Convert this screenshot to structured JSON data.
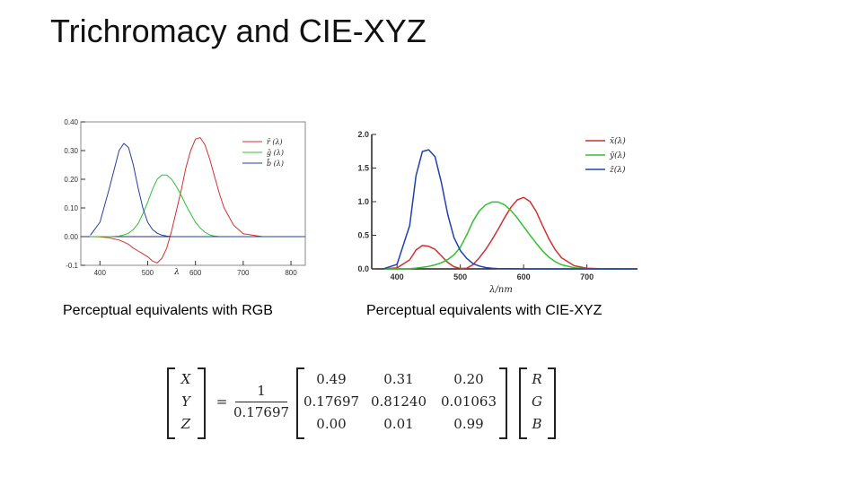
{
  "slide": {
    "title": "Trichromacy and CIE-XYZ"
  },
  "captions": {
    "left": "Perceptual equivalents with RGB",
    "right": "Perceptual equivalents with CIE-XYZ"
  },
  "chart_data": [
    {
      "type": "line",
      "title": "",
      "xlabel": "λ",
      "ylabel": "",
      "xlim": [
        360,
        830
      ],
      "ylim": [
        -0.1,
        0.4
      ],
      "x_ticks": [
        "400",
        "500",
        "600",
        "700",
        "800"
      ],
      "y_ticks": [
        "-0.1",
        "0.00",
        "0.10",
        "0.20",
        "0.30",
        "0.40"
      ],
      "grid": false,
      "legend_position": "top-right",
      "x": [
        380,
        400,
        420,
        440,
        450,
        460,
        470,
        480,
        490,
        500,
        510,
        520,
        530,
        540,
        550,
        560,
        570,
        580,
        590,
        600,
        610,
        620,
        630,
        640,
        650,
        660,
        680,
        700,
        740,
        780,
        830
      ],
      "series": [
        {
          "name": "r̄ (λ)",
          "color": "#d03030",
          "values": [
            0,
            -0.001,
            -0.004,
            -0.012,
            -0.019,
            -0.027,
            -0.04,
            -0.05,
            -0.06,
            -0.07,
            -0.085,
            -0.092,
            -0.075,
            -0.04,
            0.02,
            0.09,
            0.16,
            0.24,
            0.3,
            0.34,
            0.345,
            0.32,
            0.27,
            0.21,
            0.15,
            0.1,
            0.04,
            0.01,
            0,
            0,
            0
          ]
        },
        {
          "name": "ḡ (λ)",
          "color": "#30c030",
          "values": [
            0,
            0,
            0,
            0.002,
            0.006,
            0.012,
            0.025,
            0.045,
            0.08,
            0.12,
            0.165,
            0.2,
            0.215,
            0.215,
            0.2,
            0.175,
            0.145,
            0.11,
            0.08,
            0.05,
            0.03,
            0.015,
            0.006,
            0.002,
            0,
            0,
            0,
            0,
            0,
            0,
            0
          ]
        },
        {
          "name": "b̄ (λ)",
          "color": "#2040a0",
          "values": [
            0.005,
            0.05,
            0.17,
            0.3,
            0.325,
            0.31,
            0.25,
            0.17,
            0.1,
            0.05,
            0.025,
            0.012,
            0.005,
            0.002,
            0,
            0,
            0,
            0,
            0,
            0,
            0,
            0,
            0,
            0,
            0,
            0,
            0,
            0,
            0,
            0,
            0
          ]
        }
      ]
    },
    {
      "type": "line",
      "title": "",
      "xlabel": "λ/nm",
      "ylabel": "",
      "xlim": [
        360,
        780
      ],
      "ylim": [
        0,
        2.0
      ],
      "x_ticks": [
        "400",
        "500",
        "600",
        "700"
      ],
      "y_ticks": [
        "0.0",
        "0.5",
        "1.0",
        "1.5",
        "2.0"
      ],
      "grid": false,
      "legend_position": "top-right",
      "x": [
        380,
        400,
        420,
        430,
        440,
        450,
        460,
        470,
        480,
        490,
        500,
        510,
        520,
        530,
        540,
        550,
        560,
        570,
        580,
        590,
        600,
        610,
        620,
        630,
        640,
        650,
        660,
        680,
        700,
        720,
        740,
        780
      ],
      "series": [
        {
          "name": "x̄(λ)",
          "color": "#d03030",
          "values": [
            0.001,
            0.014,
            0.134,
            0.28,
            0.348,
            0.336,
            0.291,
            0.195,
            0.096,
            0.032,
            0.005,
            0.009,
            0.063,
            0.165,
            0.29,
            0.433,
            0.595,
            0.762,
            0.916,
            1.026,
            1.062,
            1.003,
            0.854,
            0.642,
            0.448,
            0.284,
            0.165,
            0.047,
            0.011,
            0.003,
            0.001,
            0
          ]
        },
        {
          "name": "ȳ(λ)",
          "color": "#30c030",
          "values": [
            0,
            0.0004,
            0.004,
            0.012,
            0.023,
            0.038,
            0.06,
            0.091,
            0.139,
            0.208,
            0.323,
            0.503,
            0.71,
            0.862,
            0.954,
            0.995,
            0.995,
            0.952,
            0.87,
            0.757,
            0.631,
            0.503,
            0.381,
            0.265,
            0.175,
            0.107,
            0.061,
            0.017,
            0.004,
            0.001,
            0.0003,
            0
          ]
        },
        {
          "name": "z̄(λ)",
          "color": "#2040b0",
          "values": [
            0.006,
            0.068,
            0.646,
            1.386,
            1.747,
            1.772,
            1.669,
            1.288,
            0.813,
            0.465,
            0.272,
            0.158,
            0.078,
            0.042,
            0.02,
            0.009,
            0.004,
            0.002,
            0.002,
            0.001,
            0.001,
            0,
            0,
            0,
            0,
            0,
            0,
            0,
            0,
            0,
            0,
            0
          ]
        }
      ]
    }
  ],
  "equation": {
    "lhs": [
      "X",
      "Y",
      "Z"
    ],
    "equals": "=",
    "frac_num": "1",
    "frac_den": "0.17697",
    "matrix": [
      [
        "0.49",
        "0.31",
        "0.20"
      ],
      [
        "0.17697",
        "0.81240",
        "0.01063"
      ],
      [
        "0.00",
        "0.01",
        "0.99"
      ]
    ],
    "rhs": [
      "R",
      "G",
      "B"
    ]
  }
}
